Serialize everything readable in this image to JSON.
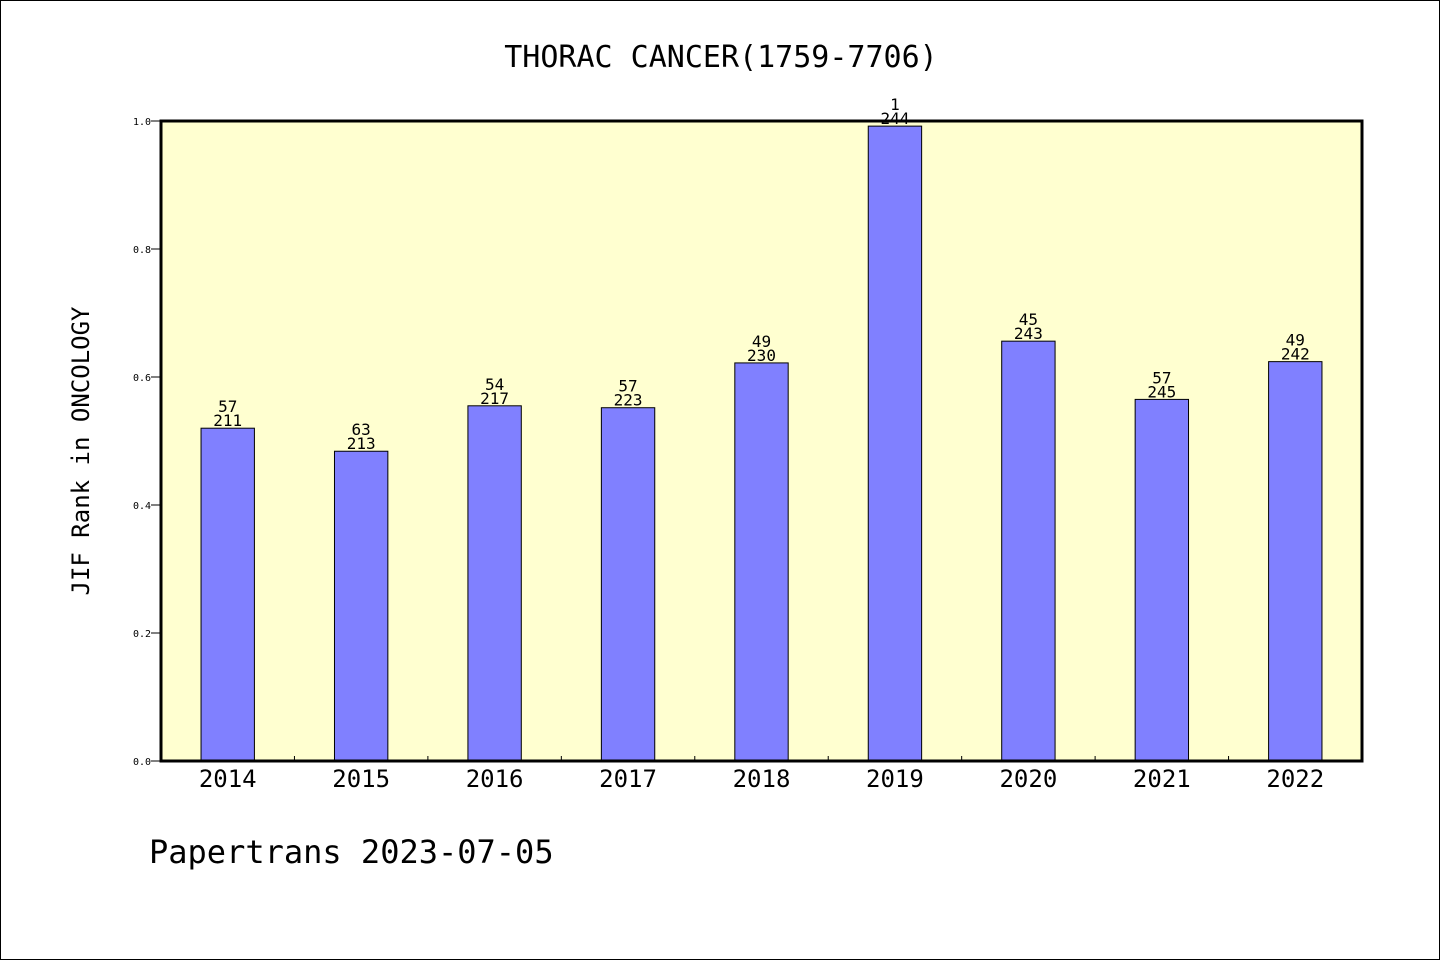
{
  "chart_data": {
    "type": "bar",
    "title": "THORAC CANCER(1759-7706)",
    "xlabel": "",
    "ylabel": "JIF Rank in ONCOLOGY",
    "categories": [
      "2014",
      "2015",
      "2016",
      "2017",
      "2018",
      "2019",
      "2020",
      "2021",
      "2022"
    ],
    "values": [
      0.52,
      0.484,
      0.555,
      0.552,
      0.622,
      0.992,
      0.656,
      0.565,
      0.624
    ],
    "rank": [
      "57",
      "63",
      "54",
      "57",
      "49",
      "1",
      "45",
      "57",
      "49"
    ],
    "total": [
      "211",
      "213",
      "217",
      "223",
      "230",
      "244",
      "243",
      "245",
      "242"
    ],
    "ylim": [
      0,
      1
    ],
    "yticks": [
      "0.0",
      "0.2",
      "0.4",
      "0.6",
      "0.8",
      "1.0"
    ],
    "grid": false,
    "colors": {
      "bar": "#8080ff",
      "plot_bg": "#ffffd0",
      "axis": "#000000"
    }
  },
  "footer": {
    "text": "Papertrans 2023-07-05"
  }
}
